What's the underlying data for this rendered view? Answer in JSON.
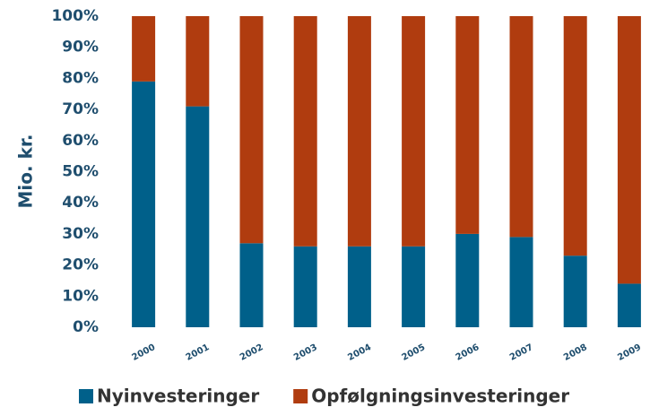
{
  "chart_data": {
    "type": "stacked_bar",
    "y_label": "Mio. kr.",
    "categories": [
      "2000",
      "2001",
      "2002",
      "2003",
      "2004",
      "2005",
      "2006",
      "2007",
      "2008",
      "2009"
    ],
    "series": [
      {
        "name": "Nyinvesteringer",
        "color": "#00608a",
        "values": [
          79,
          71,
          27,
          26,
          26,
          26,
          30,
          29,
          23,
          14
        ]
      },
      {
        "name": "Opfølgningsinvesteringer",
        "color": "#b03c0f",
        "values": [
          21,
          29,
          73,
          74,
          74,
          74,
          70,
          71,
          77,
          86
        ]
      }
    ],
    "ylim": [
      0,
      100
    ],
    "yticks": [
      {
        "value": 0,
        "label": "0%"
      },
      {
        "value": 10,
        "label": "10%"
      },
      {
        "value": 20,
        "label": "20%"
      },
      {
        "value": 30,
        "label": "30%"
      },
      {
        "value": 40,
        "label": "40%"
      },
      {
        "value": 50,
        "label": "50%"
      },
      {
        "value": 60,
        "label": "60%"
      },
      {
        "value": 70,
        "label": "70%"
      },
      {
        "value": 80,
        "label": "80%"
      },
      {
        "value": 90,
        "label": "90%"
      },
      {
        "value": 100,
        "label": "100%"
      }
    ],
    "legend": "bottom"
  }
}
